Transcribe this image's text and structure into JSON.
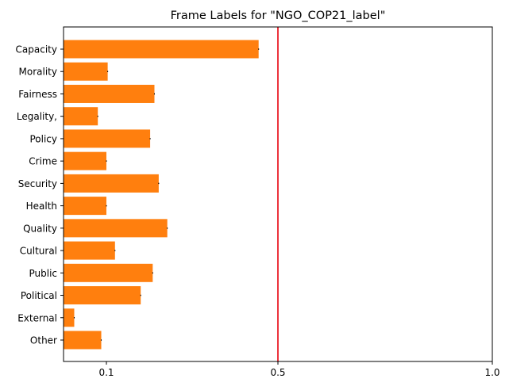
{
  "chart_data": {
    "type": "bar",
    "orientation": "horizontal",
    "title": "Frame Labels for \"NGO_COP21_label\"",
    "xlabel": "",
    "ylabel": "",
    "categories": [
      "Capacity",
      "Morality",
      "Fairness",
      "Legality,",
      "Policy",
      "Crime",
      "Security",
      "Health",
      "Quality",
      "Cultural",
      "Public",
      "Political",
      "External",
      "Other"
    ],
    "values": [
      0.455,
      0.103,
      0.212,
      0.08,
      0.202,
      0.1,
      0.222,
      0.1,
      0.242,
      0.12,
      0.208,
      0.18,
      0.025,
      0.088
    ],
    "errors": [
      0.001,
      0.001,
      0.001,
      0.001,
      0.001,
      0.001,
      0.001,
      0.001,
      0.001,
      0.001,
      0.001,
      0.001,
      0.001,
      0.001
    ],
    "xlim": [
      0.0,
      1.0
    ],
    "xticks": [
      0.1,
      0.5,
      1.0
    ],
    "xtick_labels": [
      "0.1",
      "0.5",
      "1.0"
    ],
    "reference_line": {
      "x": 0.5,
      "color": "#e8000b"
    },
    "bar_color": "#ff7f0e",
    "grid": false,
    "legend": "none"
  }
}
